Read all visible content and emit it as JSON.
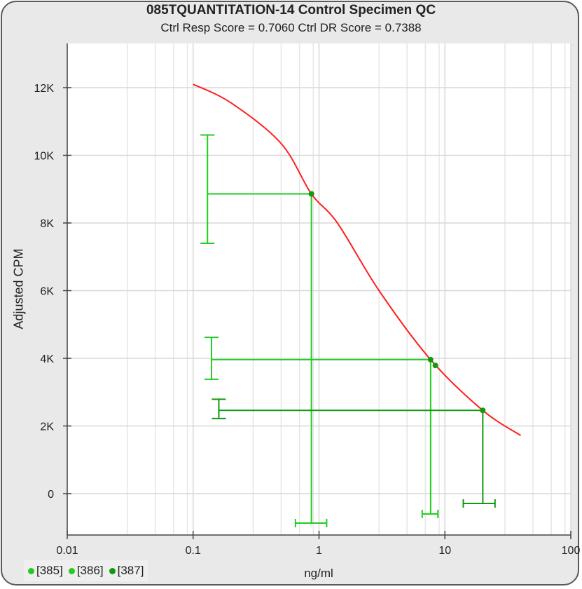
{
  "chart_data": {
    "type": "scatter",
    "title": "085TQUANTITATION-14 Control Specimen QC",
    "subtitle": "Ctrl Resp Score = 0.7060 Ctrl DR Score = 0.7388",
    "xlabel": "ng/ml",
    "ylabel": "Adjusted CPM",
    "xscale": "log",
    "xlim": [
      0.01,
      100
    ],
    "ylim": [
      -1200,
      13000
    ],
    "x_ticks": [
      0.01,
      0.1,
      1,
      10,
      100
    ],
    "x_tick_labels": [
      "0.01",
      "0.1",
      "1",
      "10",
      "100"
    ],
    "y_ticks": [
      0,
      2000,
      4000,
      6000,
      8000,
      10000,
      12000
    ],
    "y_tick_labels": [
      "0",
      "2K",
      "4K",
      "6K",
      "8K",
      "10K",
      "12K"
    ],
    "grid": true,
    "legend_position": "bottom-left",
    "fit_curve": {
      "color": "#ff2020",
      "points": [
        [
          0.1,
          12100
        ],
        [
          0.2,
          11550
        ],
        [
          0.5,
          10350
        ],
        [
          0.87,
          8860
        ],
        [
          1.4,
          8000
        ],
        [
          3.0,
          6000
        ],
        [
          7.7,
          3960
        ],
        [
          20,
          2460
        ],
        [
          40,
          1720
        ]
      ]
    },
    "series": [
      {
        "name": "[385]",
        "color": "#22cc22",
        "x": 0.87,
        "y": 8860,
        "y_err_bar": {
          "x": 0.13,
          "low": 7400,
          "high": 10600
        },
        "x_err_bar": {
          "y": -870,
          "low": 0.65,
          "high": 1.15
        }
      },
      {
        "name": "[386]",
        "color": "#22cc22",
        "x": 7.7,
        "y": 3960,
        "y_err_bar": {
          "x": 0.14,
          "low": 3380,
          "high": 4620
        },
        "x_err_bar": {
          "y": -600,
          "low": 6.6,
          "high": 8.8
        }
      },
      {
        "name": "[387]",
        "color": "#119911",
        "x": 20,
        "y": 2460,
        "y_err_bar": {
          "x": 0.16,
          "low": 2220,
          "high": 2790
        },
        "x_err_bar": {
          "y": -290,
          "low": 14,
          "high": 25
        }
      }
    ],
    "extra_points": [
      {
        "series": "[387]",
        "x": 8.4,
        "y": 3790
      }
    ]
  },
  "legend": [
    {
      "label": "[385]",
      "color": "#22cc22"
    },
    {
      "label": "[386]",
      "color": "#22cc22"
    },
    {
      "label": "[387]",
      "color": "#119911"
    }
  ]
}
